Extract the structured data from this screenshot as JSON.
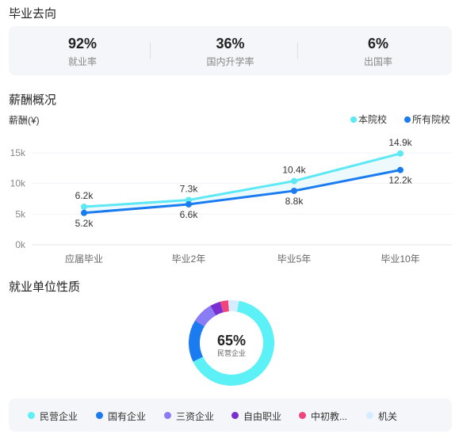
{
  "sections": {
    "destination_title": "毕业去向",
    "salary_title": "薪酬概况",
    "employer_title": "就业单位性质"
  },
  "stats": [
    {
      "value": "92%",
      "label": "就业率"
    },
    {
      "value": "36%",
      "label": "国内升学率"
    },
    {
      "value": "6%",
      "label": "出国率"
    }
  ],
  "salary_chart": {
    "type": "line",
    "ylabel": "薪酬(¥)",
    "categories": [
      "应届毕业",
      "毕业2年",
      "毕业5年",
      "毕业10年"
    ],
    "yticks": [
      "0k",
      "5k",
      "10k",
      "15k"
    ],
    "ylim": [
      0,
      15
    ],
    "grid": true,
    "legend_position": "top-right",
    "series": [
      {
        "name": "本院校",
        "color": "#5ce8f5",
        "values": [
          6.2,
          7.3,
          10.4,
          14.9
        ],
        "labels": [
          "6.2k",
          "7.3k",
          "10.4k",
          "14.9k"
        ]
      },
      {
        "name": "所有院校",
        "color": "#1a7cf0",
        "values": [
          5.2,
          6.6,
          8.8,
          12.2
        ],
        "labels": [
          "5.2k",
          "6.6k",
          "8.8k",
          "12.2k"
        ]
      }
    ]
  },
  "employer_chart": {
    "type": "pie",
    "center_value": "65%",
    "center_label": "民营企业",
    "slices": [
      {
        "name": "民营企业",
        "value": 65,
        "color": "#5cf0f7"
      },
      {
        "name": "国有企业",
        "value": 16,
        "color": "#1a7cf0"
      },
      {
        "name": "三资企业",
        "value": 8,
        "color": "#8a7cf5"
      },
      {
        "name": "自由职业",
        "value": 4,
        "color": "#7b2fd1"
      },
      {
        "name": "中初教...",
        "value": 3,
        "color": "#f0457a"
      },
      {
        "name": "机关",
        "value": 4,
        "color": "#d6ecff"
      }
    ]
  }
}
